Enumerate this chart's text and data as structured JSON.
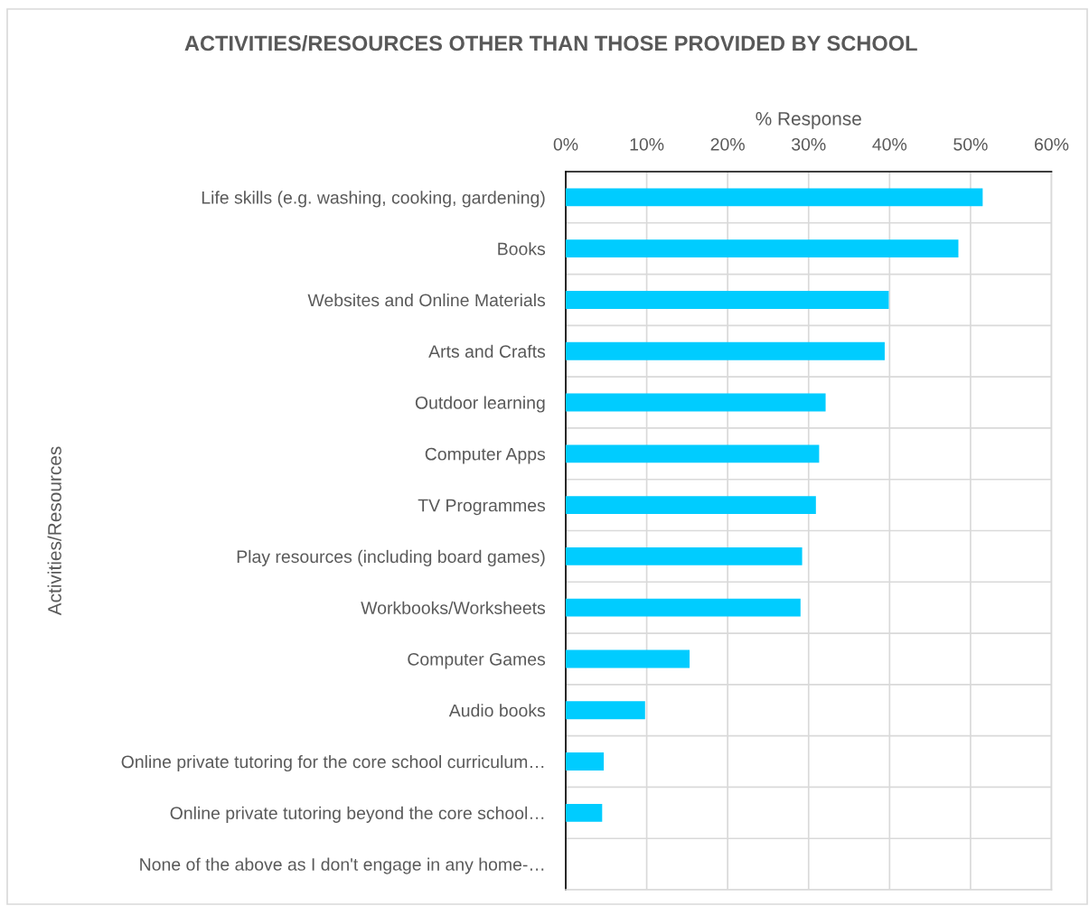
{
  "chart_data": {
    "type": "bar",
    "orientation": "horizontal",
    "title": "ACTIVITIES/RESOURCES OTHER THAN THOSE PROVIDED BY SCHOOL",
    "xlabel": "% Response",
    "ylabel": "Activities/Resources",
    "categories": [
      "Life skills (e.g. washing, cooking, gardening)",
      "Books",
      "Websites and Online Materials",
      "Arts and Crafts",
      "Outdoor learning",
      "Computer Apps",
      "TV Programmes",
      "Play resources (including board games)",
      "Workbooks/Worksheets",
      "Computer Games",
      "Audio books",
      "Online private tutoring for the core school curriculum…",
      "Online private tutoring beyond the core school…",
      "None of the above as I don't engage in any home-…"
    ],
    "values": [
      51.5,
      48.5,
      39.9,
      39.4,
      32.1,
      31.3,
      30.9,
      29.2,
      29.0,
      15.3,
      9.8,
      4.7,
      4.5,
      0
    ],
    "color": "#00ccff",
    "xlim": [
      0,
      60
    ],
    "xticks": [
      {
        "value": 0,
        "label": "0%"
      },
      {
        "value": 10,
        "label": "10%"
      },
      {
        "value": 20,
        "label": "20%"
      },
      {
        "value": 30,
        "label": "30%"
      },
      {
        "value": 40,
        "label": "40%"
      },
      {
        "value": 50,
        "label": "50%"
      },
      {
        "value": 60,
        "label": "60%"
      }
    ],
    "grid": true
  }
}
